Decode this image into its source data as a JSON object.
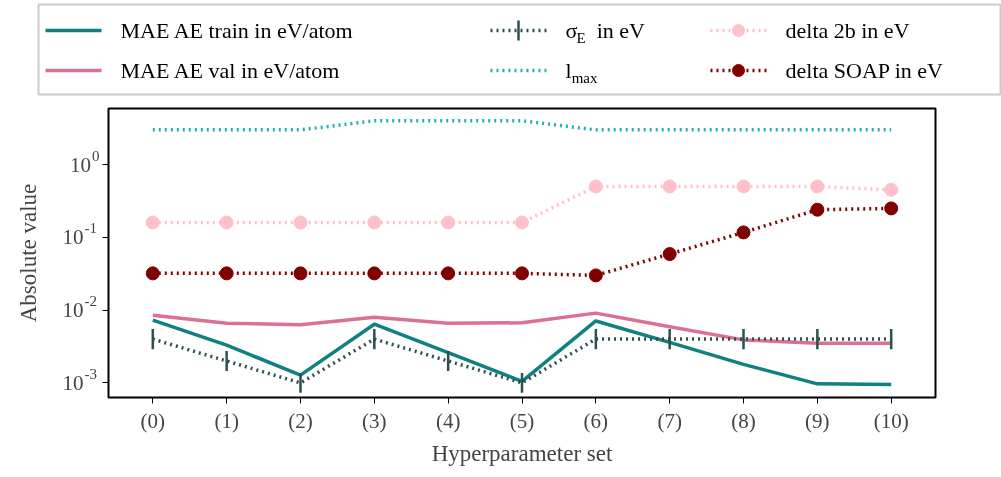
{
  "chart_data": {
    "type": "line",
    "xlabel": "Hyperparameter set",
    "ylabel": "Absolute value",
    "categories": [
      "(0)",
      "(1)",
      "(2)",
      "(3)",
      "(4)",
      "(5)",
      "(6)",
      "(7)",
      "(8)",
      "(9)",
      "(10)"
    ],
    "log": "y",
    "ylim": [
      0.00063,
      5.9
    ],
    "yticks": [
      {
        "value": 0.001,
        "label": "10$^{-3}$"
      },
      {
        "value": 0.01,
        "label": "10$^{-2}$"
      },
      {
        "value": 0.1,
        "label": "10$^{-1}$"
      },
      {
        "value": 1,
        "label": "10$^{0}$"
      }
    ],
    "grid": false,
    "legend": "top",
    "series": [
      {
        "name": "MAE AE train in eV/atom",
        "color": "#108080",
        "line_style": "solid",
        "marker": "none",
        "values": [
          0.0073,
          0.0033,
          0.00128,
          0.0064,
          0.0026,
          0.00105,
          0.0071,
          0.0036,
          0.0018,
          0.00097,
          0.00095
        ]
      },
      {
        "name": "MAE AE val in eV/atom",
        "color": "#db7093",
        "line_style": "solid",
        "marker": "none",
        "values": [
          0.0085,
          0.0066,
          0.0063,
          0.008,
          0.0066,
          0.0067,
          0.0091,
          0.0059,
          0.0039,
          0.0035,
          0.0035
        ]
      },
      {
        "name": "σ$_{E}$ in eV",
        "color": "#2f4f4f",
        "line_style": "dotted",
        "marker": "none",
        "values": [
          0.004,
          0.002,
          0.001,
          0.004,
          0.002,
          0.001,
          0.004,
          0.004,
          0.004,
          0.004,
          0.004
        ],
        "errors": [
          [
            0.0029,
            0.0055
          ],
          [
            0.00146,
            0.00274
          ],
          [
            0.00073,
            0.00137
          ],
          [
            0.0029,
            0.0055
          ],
          [
            0.00146,
            0.00274
          ],
          [
            0.00073,
            0.00137
          ],
          [
            0.0029,
            0.0055
          ],
          [
            0.0029,
            0.0055
          ],
          [
            0.0029,
            0.0055
          ],
          [
            0.0029,
            0.0055
          ],
          [
            0.0029,
            0.0055
          ]
        ]
      },
      {
        "name": "l$_{max}$",
        "color": "#20b2aa",
        "line_style": "dotted",
        "marker": "none",
        "values": [
          3,
          3,
          3,
          4,
          4,
          4,
          3,
          3,
          3,
          3,
          3
        ]
      },
      {
        "name": "delta 2b in eV",
        "color": "#ffc0cb",
        "line_style": "dotted",
        "marker": "circle",
        "values": [
          0.16,
          0.16,
          0.16,
          0.16,
          0.16,
          0.16,
          0.5,
          0.5,
          0.5,
          0.5,
          0.45
        ]
      },
      {
        "name": "delta SOAP in eV",
        "color": "#800000",
        "line_style": "dotted",
        "marker": "circle",
        "values": [
          0.032,
          0.032,
          0.032,
          0.032,
          0.032,
          0.032,
          0.03,
          0.059,
          0.117,
          0.24,
          0.25
        ]
      }
    ]
  }
}
